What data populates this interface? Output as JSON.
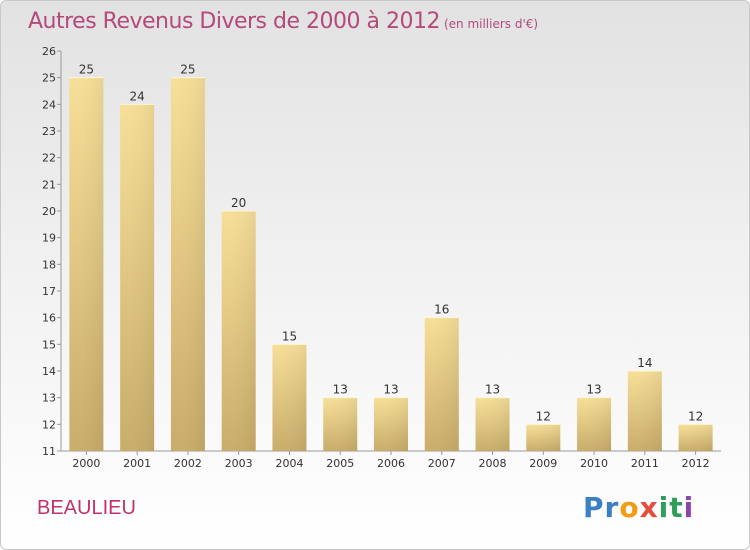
{
  "header": {
    "title": "Autres Revenus Divers de 2000 à 2012",
    "subtitle": "(en milliers d'€)"
  },
  "footer": {
    "town": "BEAULIEU",
    "logo": [
      "P",
      "r",
      "o",
      "x",
      "i",
      "t",
      "i"
    ]
  },
  "colors": {
    "title": "#b54a7a",
    "town": "#c0326e",
    "bar_light": "#f7df98",
    "bar_dark": "#c9ad6a",
    "logo": [
      "#3b7fc4",
      "#3b7fc4",
      "#f39c12",
      "#e74c3c",
      "#2e9e5b",
      "#2e9e5b",
      "#8e44ad"
    ]
  },
  "chart_data": {
    "type": "bar",
    "categories": [
      "2000",
      "2001",
      "2002",
      "2003",
      "2004",
      "2005",
      "2006",
      "2007",
      "2008",
      "2009",
      "2010",
      "2011",
      "2012"
    ],
    "values": [
      25,
      24,
      25,
      20,
      15,
      13,
      13,
      16,
      13,
      12,
      13,
      14,
      12
    ],
    "title": "Autres Revenus Divers de 2000 à 2012",
    "subtitle": "(en milliers d'€)",
    "xlabel": "",
    "ylabel": "",
    "ylim": [
      11,
      26
    ],
    "yticks": [
      11,
      12,
      13,
      14,
      15,
      16,
      17,
      18,
      19,
      20,
      21,
      22,
      23,
      24,
      25,
      26
    ],
    "grid": false,
    "data_labels": true
  }
}
